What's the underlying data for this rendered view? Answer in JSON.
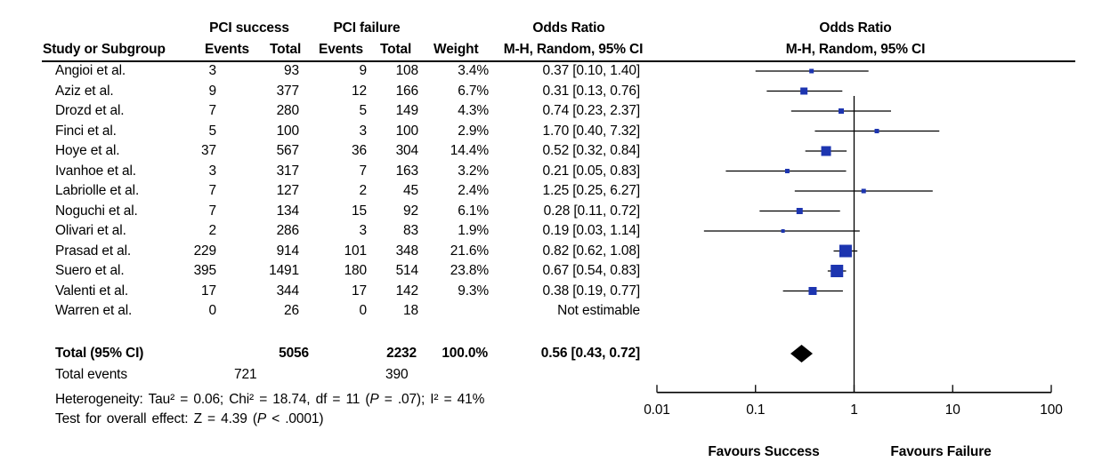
{
  "header": {
    "group_success": "PCI success",
    "group_failure": "PCI failure",
    "odds_ratio_left": "Odds Ratio",
    "odds_ratio_right": "Odds Ratio",
    "study_col": "Study or Subgroup",
    "events_col_1": "Events",
    "total_col_1": "Total",
    "events_col_2": "Events",
    "total_col_2": "Total",
    "weight_col": "Weight",
    "mh_left": "M-H, Random, 95% CI",
    "mh_right": "M-H, Random, 95% CI"
  },
  "chart_data": {
    "type": "forest",
    "effect_measure": "Odds Ratio, M-H, Random, 95% CI",
    "marker_color": "#1D35B0",
    "line_color": "#000000",
    "x_axis": {
      "scale": "log",
      "range": [
        0.01,
        100
      ],
      "null_line": 1,
      "ticks": [
        {
          "value": 0.01,
          "label": "0.01"
        },
        {
          "value": 0.1,
          "label": "0.1"
        },
        {
          "value": 1,
          "label": "1"
        },
        {
          "value": 10,
          "label": "10"
        },
        {
          "value": 100,
          "label": "100"
        }
      ]
    },
    "favours_left": "Favours Success",
    "favours_right": "Favours Failure",
    "studies": [
      {
        "name": "Angioi et al.",
        "events_success": "3",
        "total_success": "93",
        "events_failure": "9",
        "total_failure": "108",
        "weight": "3.4%",
        "weight_value": 3.4,
        "ci_label": "0.37 [0.10, 1.40]",
        "or": 0.37,
        "ci_low": 0.1,
        "ci_high": 1.4,
        "estimable": true
      },
      {
        "name": "Aziz et al.",
        "events_success": "9",
        "total_success": "377",
        "events_failure": "12",
        "total_failure": "166",
        "weight": "6.7%",
        "weight_value": 6.7,
        "ci_label": "0.31 [0.13, 0.76]",
        "or": 0.31,
        "ci_low": 0.13,
        "ci_high": 0.76,
        "estimable": true
      },
      {
        "name": "Drozd et al.",
        "events_success": "7",
        "total_success": "280",
        "events_failure": "5",
        "total_failure": "149",
        "weight": "4.3%",
        "weight_value": 4.3,
        "ci_label": "0.74 [0.23, 2.37]",
        "or": 0.74,
        "ci_low": 0.23,
        "ci_high": 2.37,
        "estimable": true
      },
      {
        "name": "Finci et al.",
        "events_success": "5",
        "total_success": "100",
        "events_failure": "3",
        "total_failure": "100",
        "weight": "2.9%",
        "weight_value": 2.9,
        "ci_label": "1.70 [0.40, 7.32]",
        "or": 1.7,
        "ci_low": 0.4,
        "ci_high": 7.32,
        "estimable": true
      },
      {
        "name": "Hoye et al.",
        "events_success": "37",
        "total_success": "567",
        "events_failure": "36",
        "total_failure": "304",
        "weight": "14.4%",
        "weight_value": 14.4,
        "ci_label": "0.52 [0.32, 0.84]",
        "or": 0.52,
        "ci_low": 0.32,
        "ci_high": 0.84,
        "estimable": true
      },
      {
        "name": "Ivanhoe et al.",
        "events_success": "3",
        "total_success": "317",
        "events_failure": "7",
        "total_failure": "163",
        "weight": "3.2%",
        "weight_value": 3.2,
        "ci_label": "0.21 [0.05, 0.83]",
        "or": 0.21,
        "ci_low": 0.05,
        "ci_high": 0.83,
        "estimable": true
      },
      {
        "name": "Labriolle et al.",
        "events_success": "7",
        "total_success": "127",
        "events_failure": "2",
        "total_failure": "45",
        "weight": "2.4%",
        "weight_value": 2.4,
        "ci_label": "1.25 [0.25, 6.27]",
        "or": 1.25,
        "ci_low": 0.25,
        "ci_high": 6.27,
        "estimable": true
      },
      {
        "name": "Noguchi et al.",
        "events_success": "7",
        "total_success": "134",
        "events_failure": "15",
        "total_failure": "92",
        "weight": "6.1%",
        "weight_value": 6.1,
        "ci_label": "0.28 [0.11, 0.72]",
        "or": 0.28,
        "ci_low": 0.11,
        "ci_high": 0.72,
        "estimable": true
      },
      {
        "name": "Olivari et al.",
        "events_success": "2",
        "total_success": "286",
        "events_failure": "3",
        "total_failure": "83",
        "weight": "1.9%",
        "weight_value": 1.9,
        "ci_label": "0.19 [0.03, 1.14]",
        "or": 0.19,
        "ci_low": 0.03,
        "ci_high": 1.14,
        "estimable": true
      },
      {
        "name": "Prasad et al.",
        "events_success": "229",
        "total_success": "914",
        "events_failure": "101",
        "total_failure": "348",
        "weight": "21.6%",
        "weight_value": 21.6,
        "ci_label": "0.82 [0.62, 1.08]",
        "or": 0.82,
        "ci_low": 0.62,
        "ci_high": 1.08,
        "estimable": true
      },
      {
        "name": "Suero et al.",
        "events_success": "395",
        "total_success": "1491",
        "events_failure": "180",
        "total_failure": "514",
        "weight": "23.8%",
        "weight_value": 23.8,
        "ci_label": "0.67 [0.54, 0.83]",
        "or": 0.67,
        "ci_low": 0.54,
        "ci_high": 0.83,
        "estimable": true
      },
      {
        "name": "Valenti et al.",
        "events_success": "17",
        "total_success": "344",
        "events_failure": "17",
        "total_failure": "142",
        "weight": "9.3%",
        "weight_value": 9.3,
        "ci_label": "0.38 [0.19, 0.77]",
        "or": 0.38,
        "ci_low": 0.19,
        "ci_high": 0.77,
        "estimable": true
      },
      {
        "name": "Warren et al.",
        "events_success": "0",
        "total_success": "26",
        "events_failure": "0",
        "total_failure": "18",
        "weight": "",
        "weight_value": 0,
        "ci_label": "Not estimable",
        "estimable": false
      }
    ],
    "total": {
      "label": "Total (95% CI)",
      "total_success": "5056",
      "total_failure": "2232",
      "weight": "100.0%",
      "ci_label": "0.56 [0.43, 0.72]",
      "or": 0.56,
      "ci_low": 0.43,
      "ci_high": 0.72
    },
    "total_events": {
      "label": "Total events",
      "events_success": "721",
      "events_failure": "390"
    },
    "heterogeneity": {
      "pre": "Heterogeneity: Tau² = 0.06; Chi² = 18.74, df = 11 (",
      "p": "P",
      "post": " = .07); I² = 41%"
    },
    "overall_effect": {
      "pre": "Test for overall effect: Z = 4.39 (",
      "p": "P",
      "post": " < .0001)"
    }
  }
}
